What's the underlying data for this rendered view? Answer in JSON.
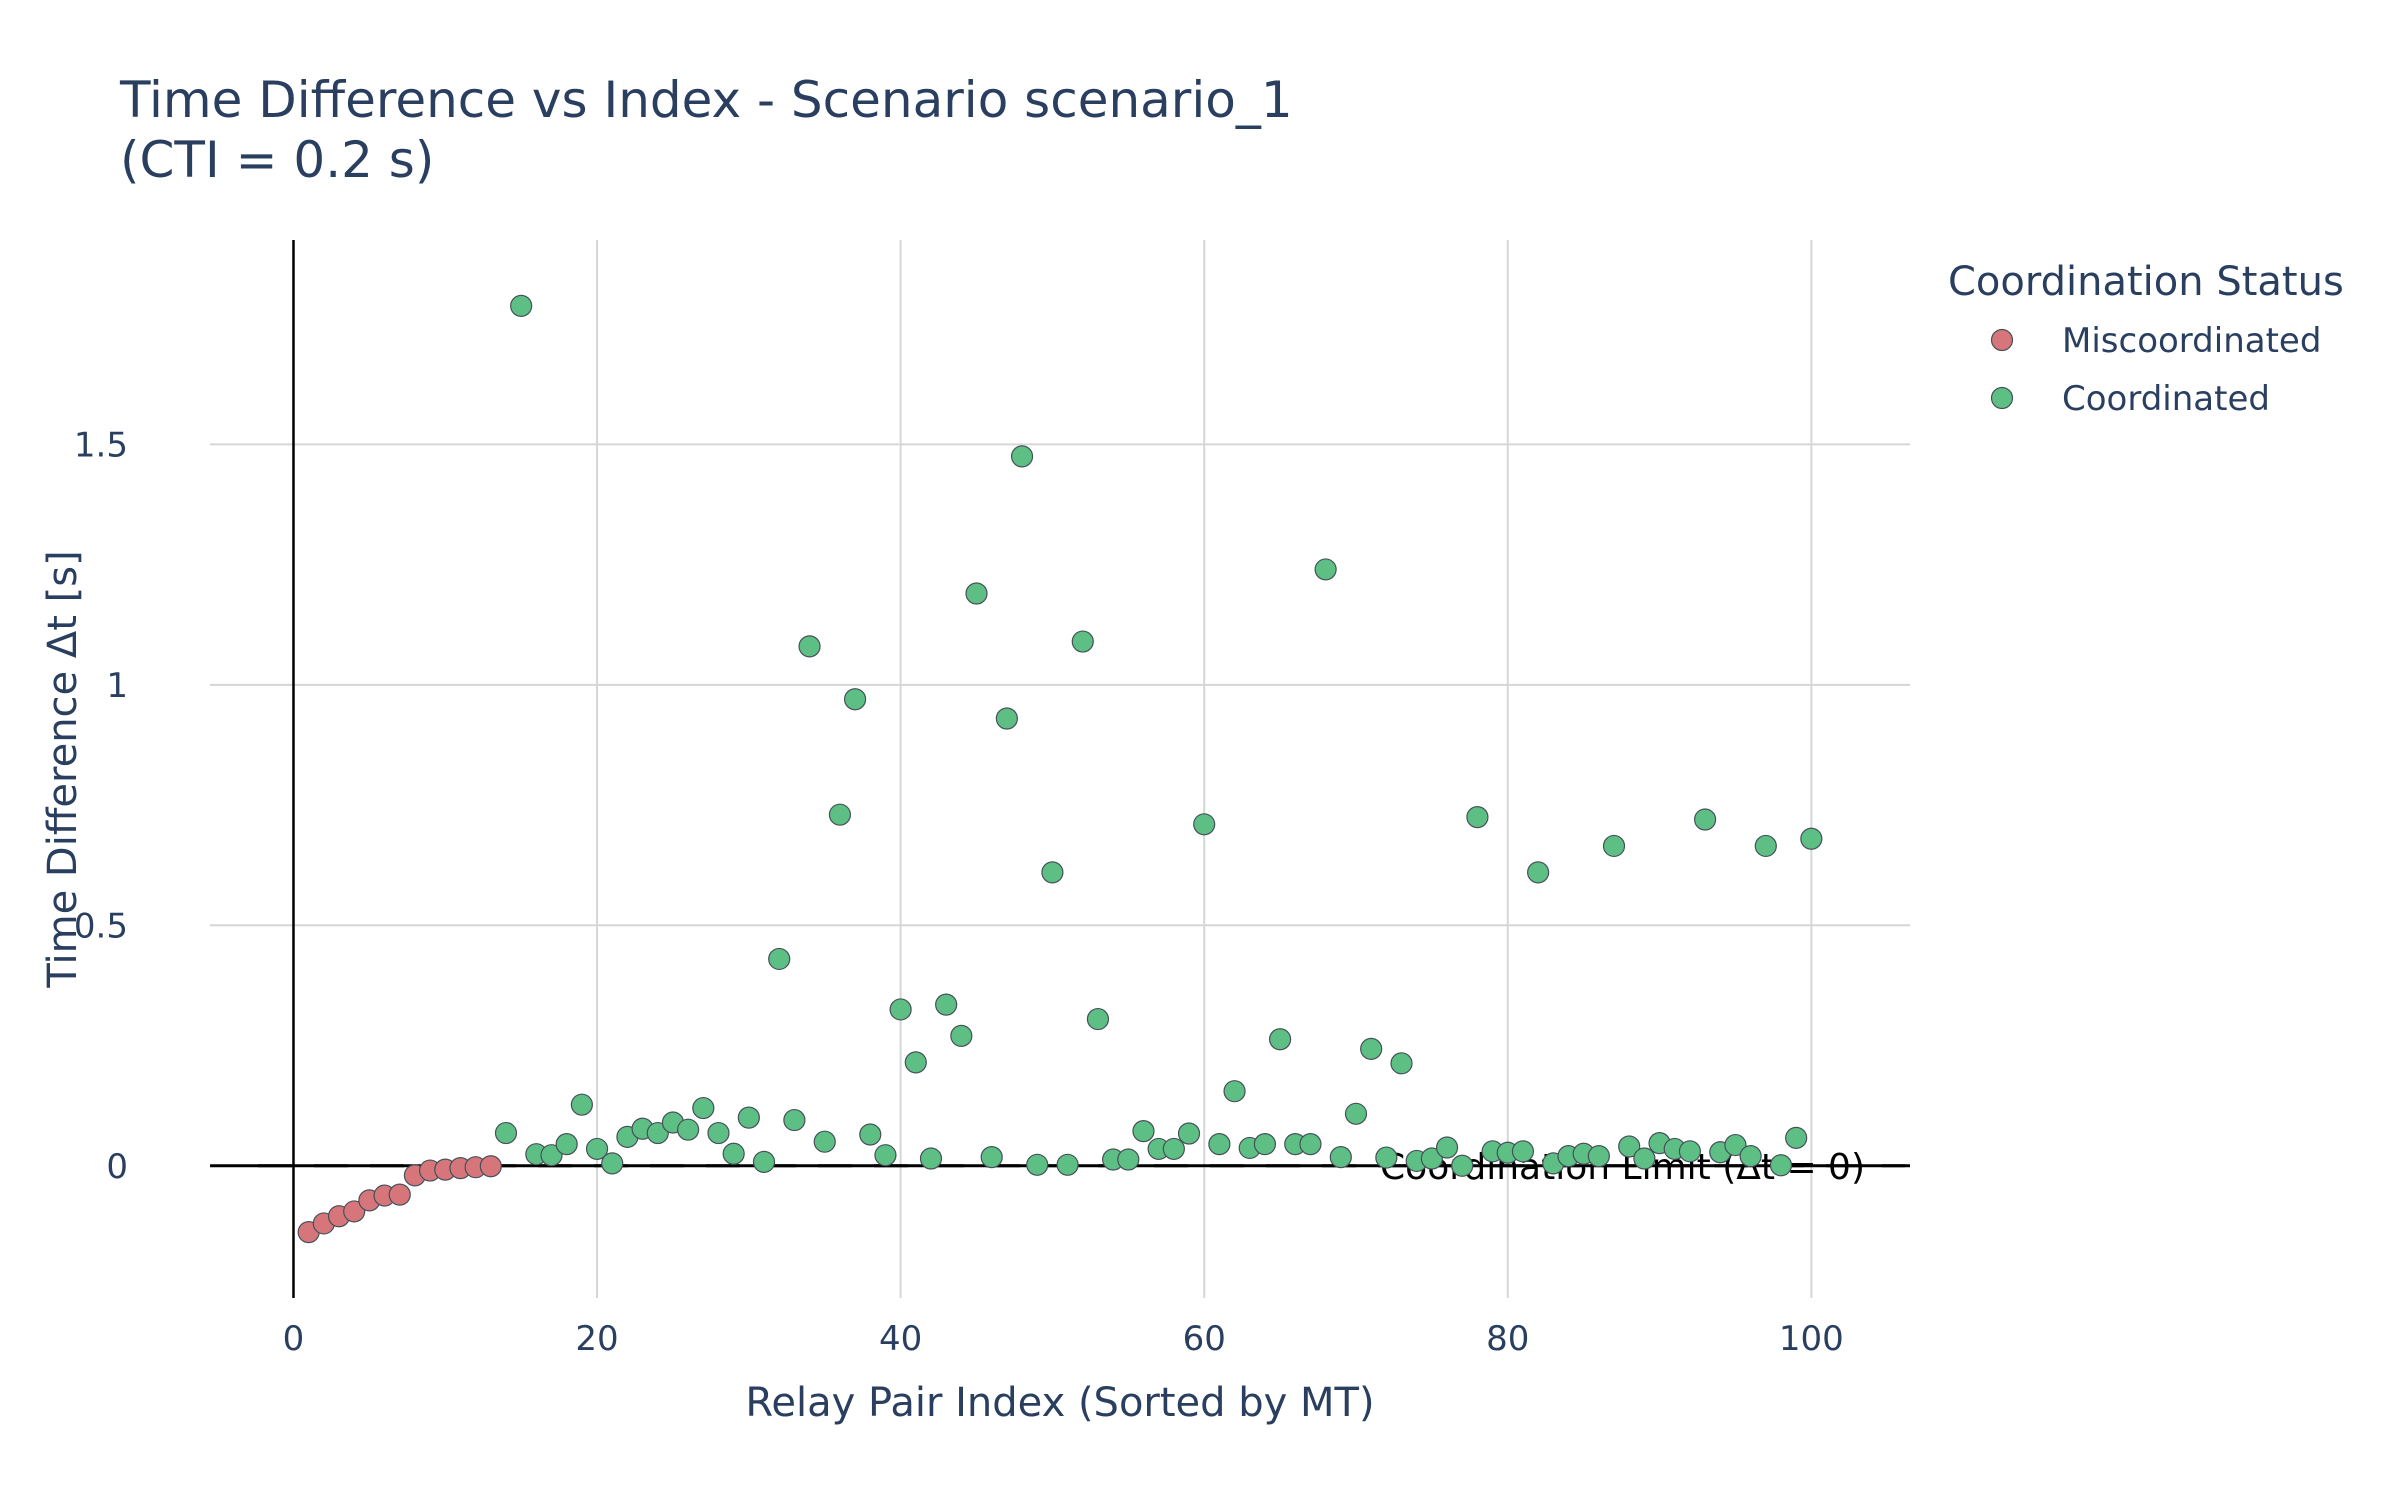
{
  "chart_data": {
    "type": "scatter",
    "title_line1": "Time Difference vs Index - Scenario scenario_1",
    "title_line2": "(CTI = 0.2 s)",
    "xlabel": "Relay Pair Index (Sorted by MT)",
    "ylabel": "Time Difference Δt [s]",
    "xlim": [
      -5.5,
      106.5
    ],
    "ylim": [
      -0.275,
      1.925
    ],
    "x_ticks": [
      0,
      20,
      40,
      60,
      80,
      100
    ],
    "x_tick_labels": [
      "0",
      "20",
      "40",
      "60",
      "80",
      "100"
    ],
    "y_ticks": [
      0,
      0.5,
      1,
      1.5
    ],
    "y_tick_labels": [
      "0",
      "0.5",
      "1",
      "1.5"
    ],
    "grid": true,
    "legend": {
      "title": "Coordination Status",
      "placement": "top-right-outside"
    },
    "annotation": {
      "text": "Coordination Limit (Δt = 0)",
      "y": 0
    },
    "series": [
      {
        "name": "Miscoordinated",
        "color": "#d6767a",
        "x": [
          1,
          2,
          3,
          4,
          5,
          6,
          7,
          8,
          9,
          10,
          11,
          12,
          13
        ],
        "y": [
          -0.138,
          -0.12,
          -0.105,
          -0.095,
          -0.072,
          -0.062,
          -0.06,
          -0.02,
          -0.01,
          -0.008,
          -0.005,
          -0.003,
          -0.001
        ]
      },
      {
        "name": "Coordinated",
        "color": "#5dbf84",
        "x": [
          14,
          15,
          16,
          17,
          18,
          19,
          20,
          21,
          22,
          23,
          24,
          25,
          26,
          27,
          28,
          29,
          30,
          31,
          32,
          33,
          34,
          35,
          36,
          37,
          38,
          39,
          40,
          41,
          42,
          43,
          44,
          45,
          46,
          47,
          48,
          49,
          50,
          51,
          52,
          53,
          54,
          55,
          56,
          57,
          58,
          59,
          60,
          61,
          62,
          63,
          64,
          65,
          66,
          67,
          68,
          69,
          70,
          71,
          72,
          73,
          74,
          75,
          76,
          77,
          78,
          79,
          80,
          81,
          82,
          83,
          84,
          85,
          86,
          87,
          88,
          89,
          90,
          91,
          92,
          93,
          94,
          95,
          96,
          97,
          98,
          99,
          100
        ],
        "y": [
          0.068,
          1.788,
          0.024,
          0.022,
          0.045,
          0.127,
          0.035,
          0.005,
          0.06,
          0.077,
          0.068,
          0.09,
          0.075,
          0.12,
          0.068,
          0.025,
          0.1,
          0.008,
          0.43,
          0.095,
          1.08,
          0.05,
          0.73,
          0.97,
          0.065,
          0.022,
          0.325,
          0.215,
          0.015,
          0.335,
          0.27,
          1.19,
          0.018,
          0.93,
          1.475,
          0.002,
          0.61,
          0.002,
          1.09,
          0.305,
          0.013,
          0.013,
          0.072,
          0.035,
          0.035,
          0.067,
          0.71,
          0.045,
          0.155,
          0.037,
          0.045,
          0.263,
          0.045,
          0.045,
          1.24,
          0.018,
          0.108,
          0.243,
          0.017,
          0.213,
          0.01,
          0.015,
          0.038,
          0.0,
          0.725,
          0.03,
          0.027,
          0.03,
          0.61,
          0.005,
          0.02,
          0.025,
          0.02,
          0.665,
          0.04,
          0.015,
          0.047,
          0.035,
          0.03,
          0.72,
          0.028,
          0.043,
          0.02,
          0.665,
          0.001,
          0.058,
          0.68
        ]
      }
    ]
  }
}
